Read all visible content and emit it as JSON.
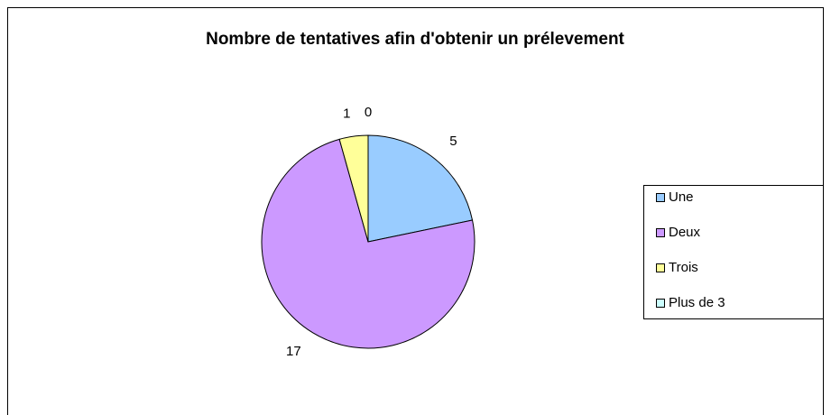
{
  "chart_data": {
    "type": "pie",
    "title": "Nombre de tentatives afin d'obtenir un prélevement",
    "categories": [
      "Une",
      "Deux",
      "Trois",
      "Plus de 3"
    ],
    "values": [
      5,
      17,
      1,
      0
    ],
    "colors": [
      "#99ccff",
      "#cc99ff",
      "#ffff99",
      "#ccffff"
    ],
    "legend": "right"
  }
}
